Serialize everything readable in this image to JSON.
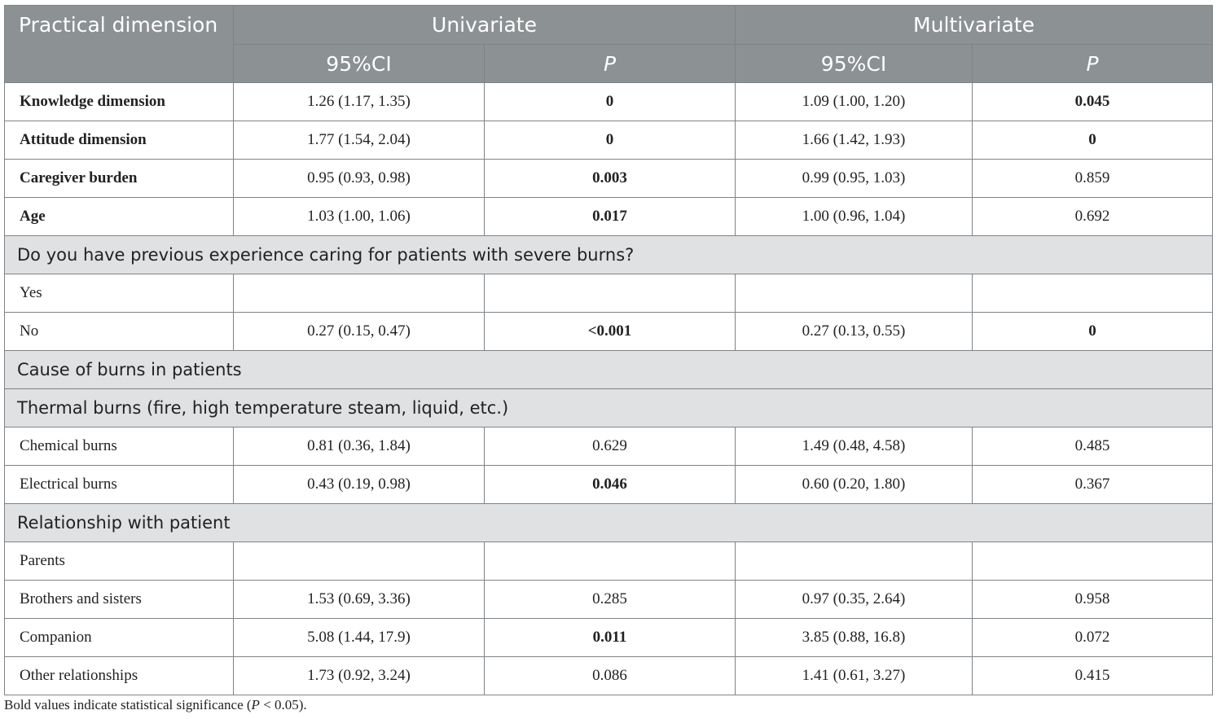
{
  "header": {
    "row_label": "Practical dimension",
    "groups": [
      "Univariate",
      "Multivariate"
    ],
    "subcols": [
      "95%CI",
      "P",
      "95%CI",
      "P"
    ]
  },
  "rows": [
    {
      "kind": "data",
      "label": "Knowledge dimension",
      "label_bold": true,
      "uni_ci": "1.26 (1.17, 1.35)",
      "uni_p": "0",
      "uni_p_bold": true,
      "multi_ci": "1.09 (1.00, 1.20)",
      "multi_p": "0.045",
      "multi_p_bold": true
    },
    {
      "kind": "data",
      "label": "Attitude dimension",
      "label_bold": true,
      "uni_ci": "1.77 (1.54, 2.04)",
      "uni_p": "0",
      "uni_p_bold": true,
      "multi_ci": "1.66 (1.42, 1.93)",
      "multi_p": "0",
      "multi_p_bold": true
    },
    {
      "kind": "data",
      "label": "Caregiver burden",
      "label_bold": true,
      "uni_ci": "0.95 (0.93, 0.98)",
      "uni_p": "0.003",
      "uni_p_bold": true,
      "multi_ci": "0.99 (0.95, 1.03)",
      "multi_p": "0.859",
      "multi_p_bold": false
    },
    {
      "kind": "data",
      "label": "Age",
      "label_bold": true,
      "uni_ci": "1.03 (1.00, 1.06)",
      "uni_p": "0.017",
      "uni_p_bold": true,
      "multi_ci": "1.00 (0.96, 1.04)",
      "multi_p": "0.692",
      "multi_p_bold": false
    },
    {
      "kind": "section",
      "label": "Do you have previous experience caring for patients with severe burns?"
    },
    {
      "kind": "data",
      "label": "Yes",
      "label_bold": false,
      "uni_ci": "",
      "uni_p": "",
      "uni_p_bold": false,
      "multi_ci": "",
      "multi_p": "",
      "multi_p_bold": false
    },
    {
      "kind": "data",
      "label": "No",
      "label_bold": false,
      "uni_ci": "0.27 (0.15, 0.47)",
      "uni_p": "<0.001",
      "uni_p_bold": true,
      "multi_ci": "0.27 (0.13, 0.55)",
      "multi_p": "0",
      "multi_p_bold": true
    },
    {
      "kind": "section",
      "label": "Cause of burns in patients"
    },
    {
      "kind": "section",
      "label": "Thermal burns (fire, high temperature steam, liquid, etc.)"
    },
    {
      "kind": "data",
      "label": "Chemical burns",
      "label_bold": false,
      "uni_ci": "0.81 (0.36, 1.84)",
      "uni_p": "0.629",
      "uni_p_bold": false,
      "multi_ci": "1.49 (0.48, 4.58)",
      "multi_p": "0.485",
      "multi_p_bold": false
    },
    {
      "kind": "data",
      "label": "Electrical burns",
      "label_bold": false,
      "uni_ci": "0.43 (0.19, 0.98)",
      "uni_p": "0.046",
      "uni_p_bold": true,
      "multi_ci": "0.60 (0.20, 1.80)",
      "multi_p": "0.367",
      "multi_p_bold": false
    },
    {
      "kind": "section",
      "label": "Relationship with patient"
    },
    {
      "kind": "data",
      "label": "Parents",
      "label_bold": false,
      "uni_ci": "",
      "uni_p": "",
      "uni_p_bold": false,
      "multi_ci": "",
      "multi_p": "",
      "multi_p_bold": false
    },
    {
      "kind": "data",
      "label": "Brothers and sisters",
      "label_bold": false,
      "uni_ci": "1.53 (0.69, 3.36)",
      "uni_p": "0.285",
      "uni_p_bold": false,
      "multi_ci": "0.97 (0.35, 2.64)",
      "multi_p": "0.958",
      "multi_p_bold": false
    },
    {
      "kind": "data",
      "label": "Companion",
      "label_bold": false,
      "uni_ci": "5.08 (1.44, 17.9)",
      "uni_p": "0.011",
      "uni_p_bold": true,
      "multi_ci": "3.85 (0.88, 16.8)",
      "multi_p": "0.072",
      "multi_p_bold": false
    },
    {
      "kind": "data",
      "label": "Other relationships",
      "label_bold": false,
      "uni_ci": "1.73 (0.92, 3.24)",
      "uni_p": "0.086",
      "uni_p_bold": false,
      "multi_ci": "1.41 (0.61, 3.27)",
      "multi_p": "0.415",
      "multi_p_bold": false
    }
  ],
  "footnote": {
    "pre": "Bold values indicate statistical significance (",
    "p": "P",
    "post": " < 0.05)."
  }
}
